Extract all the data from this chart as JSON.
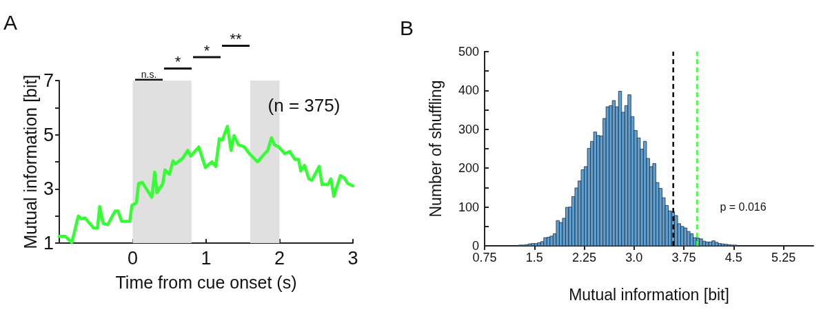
{
  "chart_data": [
    {
      "type": "line",
      "title": "A",
      "xlabel": "Time from cue onset (s)",
      "ylabel": "Mutual information [bit]",
      "x": [
        -1.0,
        -0.92,
        -0.83,
        -0.74,
        -0.7,
        -0.65,
        -0.53,
        -0.48,
        -0.45,
        -0.4,
        -0.34,
        -0.24,
        -0.2,
        -0.15,
        -0.04,
        -0.01,
        0.05,
        0.08,
        0.13,
        0.26,
        0.3,
        0.33,
        0.41,
        0.44,
        0.5,
        0.55,
        0.58,
        0.68,
        0.75,
        0.79,
        0.9,
        0.99,
        1.08,
        1.13,
        1.18,
        1.22,
        1.29,
        1.34,
        1.38,
        1.44,
        1.52,
        1.59,
        1.7,
        1.81,
        1.84,
        1.89,
        1.93,
        1.99,
        2.07,
        2.14,
        2.21,
        2.26,
        2.29,
        2.34,
        2.4,
        2.44,
        2.54,
        2.58,
        2.66,
        2.7,
        2.74,
        2.83,
        2.88,
        2.93,
        3.0
      ],
      "series": [
        {
          "color": "#33ff33",
          "values": [
            1.25,
            1.25,
            1.02,
            2.0,
            1.9,
            1.93,
            1.55,
            1.55,
            2.35,
            1.72,
            1.68,
            2.18,
            2.18,
            1.8,
            1.8,
            2.4,
            2.48,
            3.2,
            3.24,
            2.69,
            3.62,
            2.86,
            3.2,
            3.7,
            3.54,
            4.04,
            3.92,
            4.13,
            4.42,
            4.21,
            4.55,
            3.79,
            4.0,
            3.83,
            4.85,
            4.8,
            5.31,
            4.42,
            4.97,
            4.63,
            4.55,
            4.3,
            4.0,
            4.34,
            4.42,
            4.89,
            4.63,
            4.55,
            4.3,
            4.38,
            4.09,
            4.09,
            3.66,
            3.87,
            3.37,
            3.32,
            3.83,
            3.16,
            3.16,
            3.37,
            2.73,
            3.49,
            3.41,
            3.2,
            3.11
          ]
        }
      ],
      "xlim": [
        -1,
        3
      ],
      "xticks": [
        0,
        1,
        2,
        3
      ],
      "ylim": [
        1,
        7
      ],
      "yticks": [
        1,
        {
          "value": 2,
          "label": null
        },
        3,
        {
          "value": 4,
          "label": null
        },
        5,
        {
          "value": 6,
          "label": null
        },
        7
      ],
      "bands": [
        {
          "axis": "x",
          "from": 0,
          "to": 0.8,
          "color": "#e0e0e0"
        },
        {
          "axis": "x",
          "from": 1.6,
          "to": 2.0,
          "color": "#e0e0e0"
        }
      ],
      "annotations": [
        "n.s.",
        "*",
        "*",
        "**",
        "(n = 375)"
      ],
      "marker": "none",
      "line_style": "solid",
      "grid": false
    },
    {
      "type": "histogram",
      "title": "B",
      "xlabel": "Mutual information [bit]",
      "ylabel": "Number of shuffling",
      "color": "#5f9fcf",
      "bins": [
        1.265625,
        1.3125,
        1.359375,
        1.40625,
        1.453125,
        1.5,
        1.546875,
        1.59375,
        1.640625,
        1.6875,
        1.734375,
        1.78125,
        1.828125,
        1.875,
        1.921875,
        1.96875,
        2.015625,
        2.0625,
        2.109375,
        2.15625,
        2.203125,
        2.25,
        2.296875,
        2.34375,
        2.390625,
        2.4375,
        2.484375,
        2.53125,
        2.578125,
        2.625,
        2.671875,
        2.71875,
        2.765625,
        2.8125,
        2.859375,
        2.90625,
        2.953125,
        3.0,
        3.046875,
        3.09375,
        3.140625,
        3.1875,
        3.234375,
        3.28125,
        3.328125,
        3.375,
        3.421875,
        3.46875,
        3.515625,
        3.5625,
        3.609375,
        3.65625,
        3.703125,
        3.75,
        3.796875,
        3.84375,
        3.890625,
        3.9375,
        3.984375,
        4.03125,
        4.078125,
        4.125,
        4.171875,
        4.21875,
        4.265625,
        4.3125,
        4.359375,
        4.40625,
        4.453125,
        4.5,
        4.546875
      ],
      "values": [
        2,
        2,
        3,
        5,
        6,
        6,
        8,
        11,
        21,
        22,
        25,
        31,
        65,
        60,
        71,
        99,
        100,
        127,
        149,
        167,
        196,
        204,
        251,
        269,
        293,
        284,
        283,
        328,
        358,
        361,
        374,
        358,
        398,
        344,
        361,
        389,
        333,
        297,
        278,
        249,
        269,
        225,
        204,
        212,
        163,
        148,
        124,
        104,
        90,
        88,
        78,
        57,
        50,
        46,
        37,
        31,
        21,
        20,
        18,
        12,
        10,
        10,
        13,
        9,
        6,
        5,
        4,
        3,
        2,
        2
      ],
      "xlim": [
        0.75,
        5.7
      ],
      "xticks": [
        0.75,
        1.5,
        2.25,
        {
          "value": 3,
          "label": "3.0"
        },
        3.75,
        4.5,
        5.25
      ],
      "ylim": [
        0,
        500
      ],
      "yticks": [
        0,
        {
          "value": 50,
          "label": null
        },
        100,
        {
          "value": 150,
          "label": null
        },
        200,
        {
          "value": 250,
          "label": null
        },
        300,
        {
          "value": 350,
          "label": null
        },
        400,
        {
          "value": 450,
          "label": null
        },
        500
      ],
      "ref_lines": [
        {
          "axis": "x",
          "value": 3.59,
          "color": "#000000",
          "line_style": "dashed"
        },
        {
          "axis": "x",
          "value": 3.95,
          "color": "#33ff33",
          "line_style": "dashed"
        }
      ],
      "annotations": [
        "p = 0.016"
      ],
      "grid": false
    }
  ]
}
